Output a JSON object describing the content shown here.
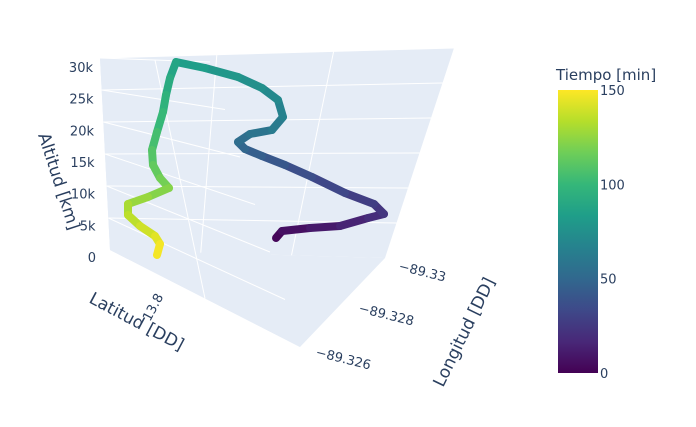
{
  "chart_data": {
    "type": "line3d",
    "title": "",
    "axes": {
      "x": {
        "label": "Longitud [DD]",
        "ticks": [
          "−89.33",
          "−89.328",
          "−89.326"
        ]
      },
      "y": {
        "label": "Latitud [DD]",
        "ticks": [
          "13.8"
        ]
      },
      "z": {
        "label": "Altitud [km]",
        "ticks": [
          "0",
          "5k",
          "10k",
          "15k",
          "20k",
          "25k",
          "30k"
        ],
        "range": [
          0,
          30000
        ]
      }
    },
    "colorbar": {
      "title": "Tiempo [min]",
      "colorscale": "Viridis",
      "range": [
        0,
        150
      ],
      "ticks": [
        "0",
        "50",
        "100",
        "150"
      ]
    },
    "series": [
      {
        "name": "",
        "color_by": "Tiempo [min]",
        "time_min": [
          0,
          10,
          20,
          30,
          40,
          50,
          60,
          70,
          75,
          80,
          90,
          100,
          110,
          115,
          120,
          125,
          130,
          135,
          140,
          145,
          150
        ],
        "altitude_m": [
          0,
          1500,
          3000,
          5500,
          8000,
          12000,
          15500,
          19000,
          21000,
          24000,
          27500,
          30000,
          24500,
          20000,
          15000,
          11000,
          9500,
          6000,
          4000,
          2000,
          0
        ]
      }
    ]
  }
}
